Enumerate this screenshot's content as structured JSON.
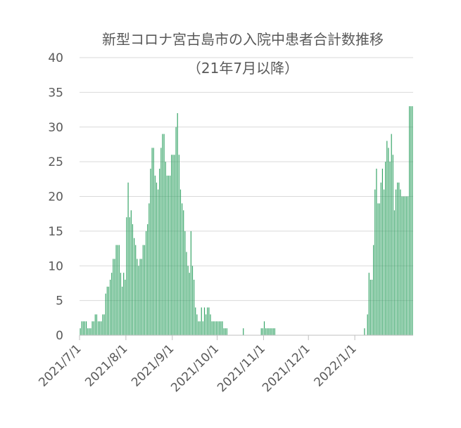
{
  "chart_data": {
    "type": "bar",
    "title": "新型コロナ宮古島市の入院中患者合計数推移",
    "subtitle": "（21年7月以降）",
    "xlabel": "",
    "ylabel": "",
    "ylim": [
      0,
      40
    ],
    "yticks": [
      "0",
      "5",
      "10",
      "15",
      "20",
      "25",
      "30",
      "35",
      "40"
    ],
    "xticks": [
      {
        "date": "2021-07-01",
        "label": "2021/7/1"
      },
      {
        "date": "2021-08-01",
        "label": "2021/8/1"
      },
      {
        "date": "2021-09-01",
        "label": "2021/9/1"
      },
      {
        "date": "2021-10-01",
        "label": "2021/10/1"
      },
      {
        "date": "2021-11-01",
        "label": "2021/11/1"
      },
      {
        "date": "2021-12-01",
        "label": "2021/12/1"
      },
      {
        "date": "2022-01-01",
        "label": "2022/1/1"
      }
    ],
    "x_start_date": "2021-07-01",
    "bar_color": "#33a365",
    "grid": true,
    "values": [
      1,
      2,
      2,
      2,
      2,
      1,
      1,
      1,
      2,
      2,
      3,
      3,
      2,
      2,
      2,
      3,
      3,
      6,
      7,
      7,
      8,
      9,
      11,
      11,
      13,
      13,
      13,
      9,
      7,
      9,
      8,
      17,
      22,
      17,
      18,
      16,
      14,
      13,
      11,
      10,
      11,
      11,
      13,
      13,
      15,
      16,
      19,
      24,
      27,
      27,
      23,
      22,
      21,
      24,
      27,
      29,
      29,
      25,
      23,
      23,
      23,
      26,
      26,
      26,
      30,
      32,
      26,
      21,
      19,
      18,
      15,
      12,
      10,
      9,
      15,
      10,
      8,
      4,
      3,
      2,
      2,
      4,
      2,
      4,
      3,
      4,
      4,
      3,
      2,
      2,
      2,
      2,
      2,
      2,
      2,
      2,
      1,
      1,
      1,
      0,
      0,
      0,
      0,
      0,
      0,
      0,
      0,
      0,
      0,
      1,
      0,
      0,
      0,
      0,
      0,
      0,
      0,
      0,
      0,
      0,
      0,
      1,
      1,
      2,
      1,
      1,
      1,
      1,
      1,
      1,
      1,
      0,
      0,
      0,
      0,
      0,
      0,
      0,
      0,
      0,
      0,
      0,
      0,
      0,
      0,
      0,
      0,
      0,
      0,
      0,
      0,
      0,
      0,
      0,
      0,
      0,
      0,
      0,
      0,
      0,
      0,
      0,
      0,
      0,
      0,
      0,
      0,
      0,
      0,
      0,
      0,
      0,
      0,
      0,
      0,
      0,
      0,
      0,
      0,
      0,
      0,
      0,
      0,
      0,
      0,
      0,
      0,
      0,
      0,
      0,
      1,
      0,
      3,
      9,
      8,
      8,
      13,
      21,
      24,
      19,
      19,
      22,
      24,
      21,
      25,
      28,
      27,
      25,
      29,
      26,
      18,
      21,
      22,
      22,
      21,
      20,
      20,
      20,
      20,
      20,
      33,
      33,
      33
    ]
  }
}
